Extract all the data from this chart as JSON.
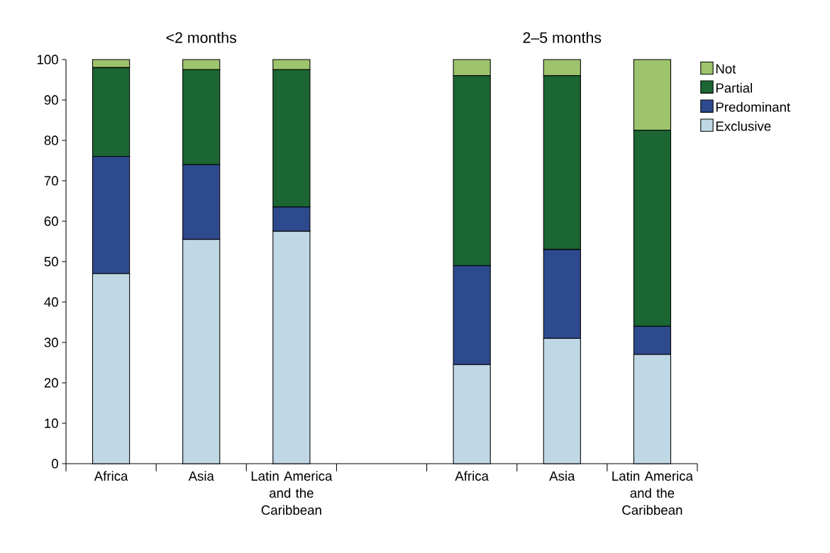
{
  "chart_data": {
    "type": "bar",
    "stacked": true,
    "categories": [
      "Africa",
      "Asia",
      "Latin America and the Caribbean",
      null,
      "Africa",
      "Asia",
      "Latin America and the Caribbean"
    ],
    "series": [
      {
        "name": "Exclusive",
        "color": "#c0d8e6",
        "values": [
          47,
          55.5,
          57.5,
          null,
          24.5,
          31,
          27
        ]
      },
      {
        "name": "Predominant",
        "color": "#2e4a8e",
        "values": [
          29,
          18.5,
          6,
          null,
          24.5,
          22,
          7
        ]
      },
      {
        "name": "Partial",
        "color": "#1b6632",
        "values": [
          22,
          23.5,
          34,
          null,
          47,
          43,
          48.5
        ]
      },
      {
        "name": "Not",
        "color": "#9dc46c",
        "values": [
          2,
          2.5,
          2.5,
          null,
          4,
          4,
          17.5
        ]
      }
    ],
    "ylim": [
      0,
      100
    ],
    "yticks": [
      0,
      10,
      20,
      30,
      40,
      50,
      60,
      70,
      80,
      90,
      100
    ],
    "legend": "right",
    "annotations": [
      "<2 months",
      "2–5 months"
    ]
  }
}
